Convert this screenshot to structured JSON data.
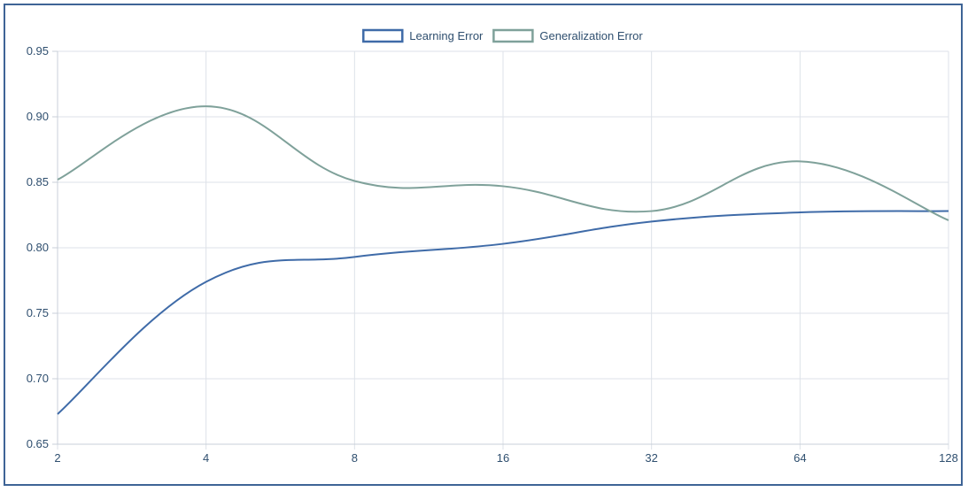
{
  "chart_data": {
    "type": "line",
    "title": "",
    "xlabel": "",
    "ylabel": "",
    "x_scale": "log2",
    "x": [
      2,
      4,
      8,
      16,
      32,
      64,
      128
    ],
    "x_tick_labels": [
      "2",
      "4",
      "8",
      "16",
      "32",
      "64",
      "128"
    ],
    "y_tick_labels": [
      "0.95",
      "0.90",
      "0.85",
      "0.80",
      "0.75",
      "0.70",
      "0.65"
    ],
    "ylim": [
      0.65,
      0.95
    ],
    "grid": true,
    "legend_position": "top-center",
    "series": [
      {
        "name": "Learning Error",
        "color": "#3f6ba8",
        "values": [
          0.673,
          0.774,
          0.793,
          0.803,
          0.82,
          0.827,
          0.828
        ]
      },
      {
        "name": "Generalization Error",
        "color": "#7fa19a",
        "values": [
          0.852,
          0.908,
          0.851,
          0.847,
          0.828,
          0.866,
          0.821
        ]
      }
    ]
  }
}
